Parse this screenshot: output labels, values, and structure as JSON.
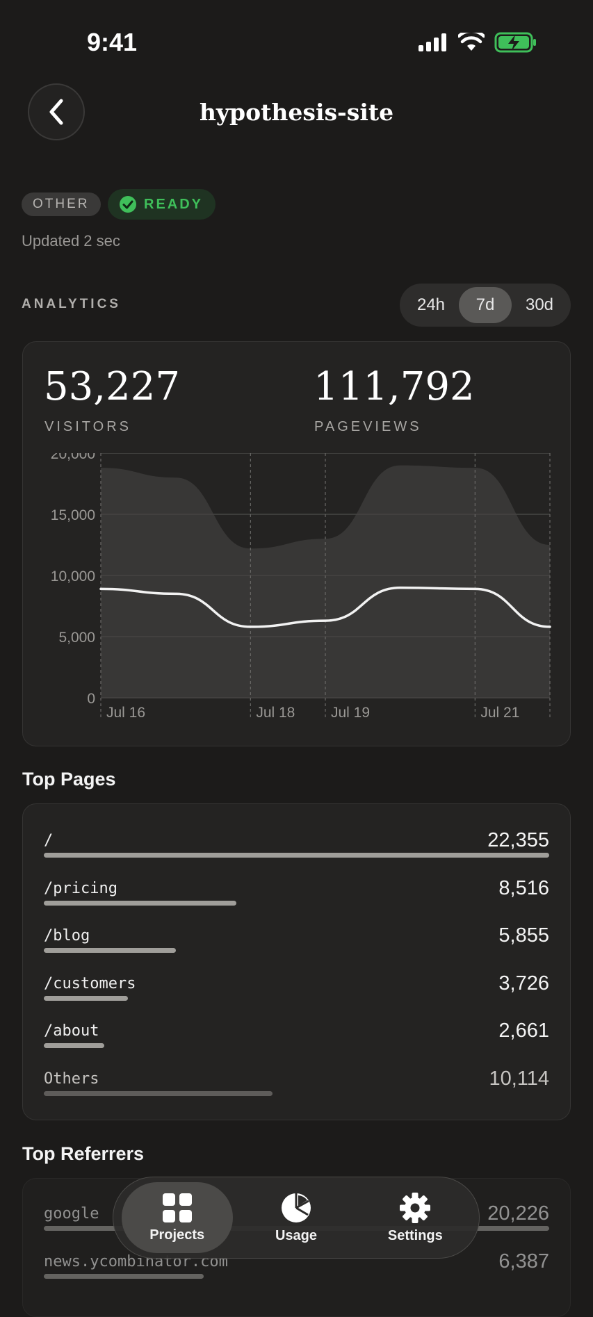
{
  "status_bar": {
    "time": "9:41"
  },
  "header": {
    "title": "hypothesis-site"
  },
  "badges": {
    "framework": "OTHER",
    "status": "READY"
  },
  "updated": "Updated 2 sec",
  "analytics": {
    "label": "ANALYTICS",
    "ranges": [
      "24h",
      "7d",
      "30d"
    ],
    "selected_range": "7d",
    "visitors": {
      "value": "53,227",
      "label": "VISITORS"
    },
    "pageviews": {
      "value": "111,792",
      "label": "PAGEVIEWS"
    }
  },
  "chart_data": {
    "type": "area",
    "title": "",
    "xlabel": "",
    "ylabel": "",
    "ylim": [
      0,
      20000
    ],
    "yticks": [
      "20,000",
      "15,000",
      "10,000",
      "5,000",
      "0"
    ],
    "ytick_values": [
      20000,
      15000,
      10000,
      5000,
      0
    ],
    "x_tick_labels": [
      "Jul 16",
      "Jul 18",
      "Jul 19",
      "Jul 21"
    ],
    "x_tick_values": [
      0,
      2,
      3,
      5
    ],
    "x": [
      0,
      1,
      2,
      3,
      4,
      5,
      6
    ],
    "series": [
      {
        "values": [
          18800,
          18000,
          12200,
          13000,
          19000,
          18800,
          12500
        ],
        "style": "area"
      },
      {
        "values": [
          8900,
          8500,
          5800,
          6300,
          9000,
          8900,
          5800
        ],
        "style": "line"
      }
    ],
    "grid": true,
    "colors": {
      "area": "#3a3938",
      "line": "#f2f2f2"
    }
  },
  "top_pages": {
    "title": "Top Pages",
    "max": 22355,
    "rows": [
      {
        "path": "/",
        "value": "22,355",
        "n": 22355
      },
      {
        "path": "/pricing",
        "value": "8,516",
        "n": 8516
      },
      {
        "path": "/blog",
        "value": "5,855",
        "n": 5855
      },
      {
        "path": "/customers",
        "value": "3,726",
        "n": 3726
      },
      {
        "path": "/about",
        "value": "2,661",
        "n": 2661
      },
      {
        "path": "Others",
        "value": "10,114",
        "n": 10114
      }
    ]
  },
  "top_referrers": {
    "title": "Top Referrers",
    "max": 20226,
    "rows": [
      {
        "path": "google",
        "value": "20,226",
        "n": 20226
      },
      {
        "path": "news.ycombinator.com",
        "value": "6,387",
        "n": 6387
      }
    ]
  },
  "tabbar": {
    "items": [
      {
        "label": "Projects",
        "icon": "grid-icon",
        "active": true
      },
      {
        "label": "Usage",
        "icon": "pie-chart-icon",
        "active": false
      },
      {
        "label": "Settings",
        "icon": "gear-icon",
        "active": false
      }
    ]
  }
}
